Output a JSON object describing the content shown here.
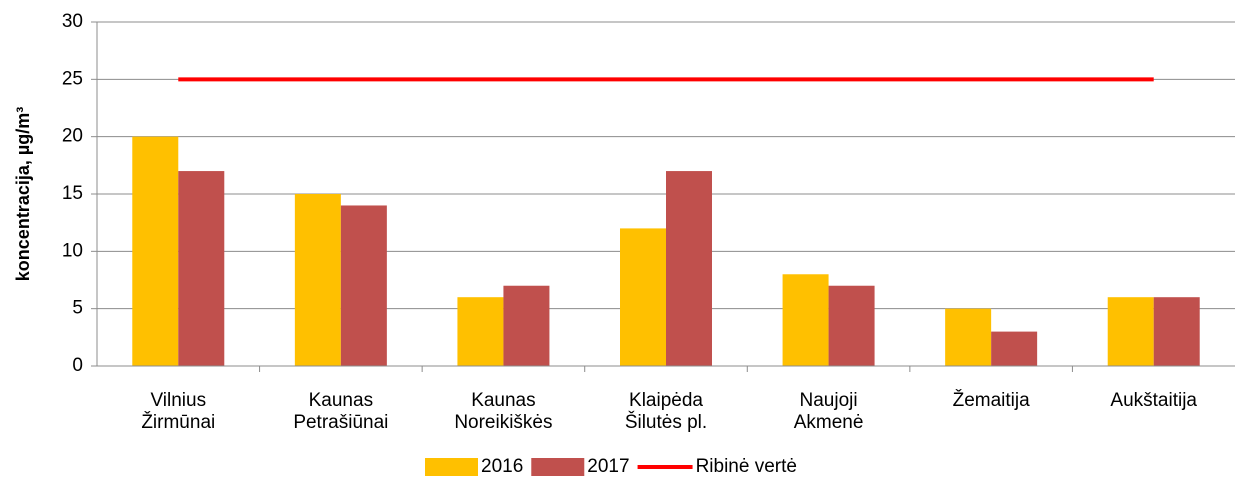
{
  "chart_data": {
    "type": "bar",
    "categories": [
      [
        "Vilnius",
        "Žirmūnai"
      ],
      [
        "Kaunas",
        "Petrašiūnai"
      ],
      [
        "Kaunas",
        "Noreikiškės"
      ],
      [
        "Klaipėda",
        "Šilutės pl."
      ],
      [
        "Naujoji",
        "Akmenė"
      ],
      [
        "Žemaitija"
      ],
      [
        "Aukštaitija"
      ]
    ],
    "series": [
      {
        "name": "2016",
        "color": "#ffc000",
        "type": "bar",
        "values": [
          20,
          15,
          6,
          12,
          8,
          5,
          6
        ]
      },
      {
        "name": "2017",
        "color": "#c0504d",
        "type": "bar",
        "values": [
          17,
          14,
          7,
          17,
          7,
          3,
          6
        ]
      },
      {
        "name": "Ribinė vertė",
        "color": "#ff0000",
        "type": "line",
        "values": [
          25,
          25,
          25,
          25,
          25,
          25,
          25
        ]
      }
    ],
    "y_label": "koncentracija, µg/m³",
    "ylim": [
      0,
      30
    ],
    "yticks": [
      0,
      5,
      10,
      15,
      20,
      25,
      30
    ],
    "grid": true,
    "legend": "bottom"
  }
}
